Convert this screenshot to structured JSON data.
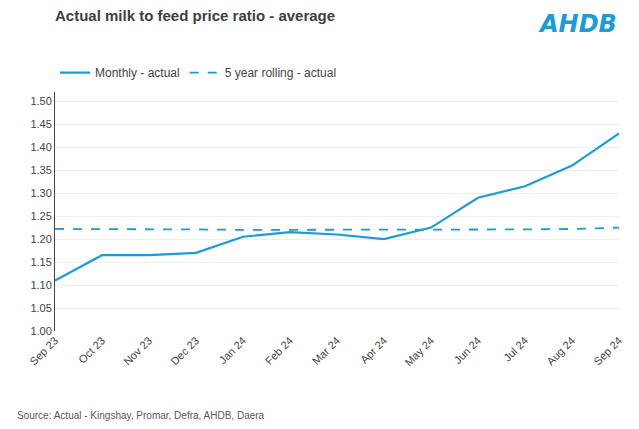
{
  "chart_data": {
    "type": "line",
    "title": "Actual milk to feed price ratio - average",
    "categories": [
      "Sep 23",
      "Oct 23",
      "Nov 23",
      "Dec 23",
      "Jan 24",
      "Feb 24",
      "Mar 24",
      "Apr 24",
      "May 24",
      "Jun 24",
      "Jul 24",
      "Aug 24",
      "Sep 24"
    ],
    "series": [
      {
        "name": "Monthly - actual",
        "color": "#1B9CD9",
        "line_style": "solid",
        "values": [
          1.11,
          1.165,
          1.165,
          1.17,
          1.205,
          1.215,
          1.21,
          1.2,
          1.225,
          1.29,
          1.315,
          1.36,
          1.43
        ]
      },
      {
        "name": "5 year rolling - actual",
        "color": "#1B9CD9",
        "line_style": "dashed",
        "values": [
          1.222,
          1.222,
          1.222,
          1.221,
          1.22,
          1.22,
          1.22,
          1.22,
          1.22,
          1.221,
          1.221,
          1.222,
          1.225
        ]
      }
    ],
    "ylim": [
      1.0,
      1.52
    ],
    "yticks": [
      {
        "value": 1.0,
        "label": "1.00"
      },
      1.05,
      {
        "value": 1.1,
        "label": "1.10"
      },
      1.15,
      {
        "value": 1.2,
        "label": "1.20"
      },
      1.25,
      {
        "value": 1.3,
        "label": "1.30"
      },
      1.35,
      {
        "value": 1.4,
        "label": "1.40"
      },
      1.45,
      {
        "value": 1.5,
        "label": "1.50"
      }
    ],
    "grid": true,
    "legend": "upper left",
    "annotations": [
      "AHDB",
      "Source: Actual - Kingshay, Promar, Defra, AHDB, Daera"
    ]
  }
}
